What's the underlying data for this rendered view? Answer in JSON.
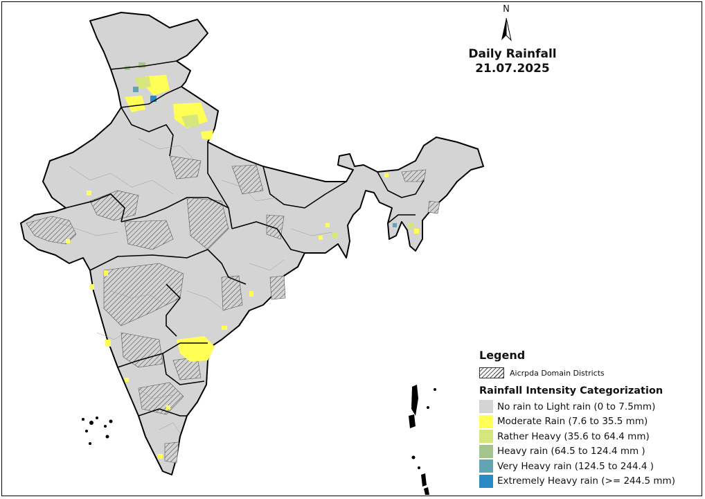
{
  "map": {
    "title_line1": "Daily Rainfall",
    "title_line2": "21.07.2025",
    "north_label": "N",
    "land_color": "#d4d4d4",
    "outline_color": "#000000"
  },
  "legend": {
    "title": "Legend",
    "domain_label": "Aicrpda Domain Districts",
    "categorization_title": "Rainfall Intensity Categorization",
    "categories": [
      {
        "label": "No rain to Light rain (0 to 7.5mm)",
        "color": "#d4d4d4"
      },
      {
        "label": "Moderate Rain (7.6 to 35.5 mm)",
        "color": "#ffff55"
      },
      {
        "label": "Rather Heavy (35.6 to 64.4 mm)",
        "color": "#d6e57c"
      },
      {
        "label": "Heavy rain (64.5 to 124.4 mm )",
        "color": "#a4c48e"
      },
      {
        "label": "Very Heavy rain (124.5 to 244.4 )",
        "color": "#63a4b4"
      },
      {
        "label": "Extremely Heavy rain  (>= 244.5 mm)",
        "color": "#2a8bc4"
      }
    ]
  }
}
